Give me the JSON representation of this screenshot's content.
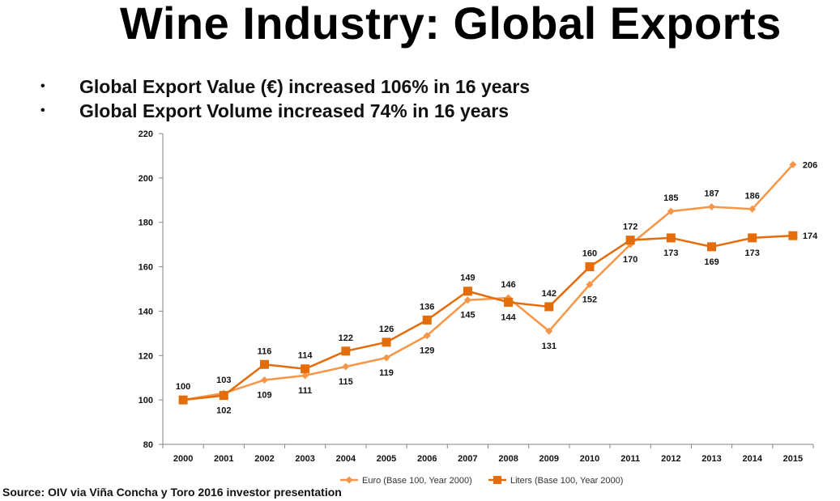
{
  "slide": {
    "title": "Wine Industry: Global Exports",
    "bullets": [
      "Global Export Value (€) increased 106% in 16 years",
      "Global Export Volume increased 74% in 16 years"
    ],
    "source": "Source: OIV via Viña Concha y Toro 2016 investor presentation"
  },
  "chart_data": {
    "type": "line",
    "title": "",
    "xlabel": "",
    "ylabel": "",
    "categories": [
      "2000",
      "2001",
      "2002",
      "2003",
      "2004",
      "2005",
      "2006",
      "2007",
      "2008",
      "2009",
      "2010",
      "2011",
      "2012",
      "2013",
      "2014",
      "2015"
    ],
    "ylim": [
      80,
      220
    ],
    "yticks": [
      80,
      100,
      120,
      140,
      160,
      180,
      200,
      220
    ],
    "grid": false,
    "legend_position": "bottom",
    "series": [
      {
        "name": "Euro (Base 100, Year 2000)",
        "marker": "diamond",
        "color": "#F79646",
        "values": [
          100,
          103,
          109,
          111,
          115,
          119,
          129,
          145,
          146,
          131,
          152,
          170,
          185,
          187,
          186,
          206
        ],
        "label_positions": [
          "none",
          "above",
          "below",
          "below",
          "below",
          "below",
          "below",
          "below",
          "above",
          "below",
          "below",
          "below",
          "above",
          "above",
          "above",
          "right"
        ]
      },
      {
        "name": "Liters (Base 100, Year 2000)",
        "marker": "square",
        "color": "#E46C0A",
        "values": [
          100,
          102,
          116,
          114,
          122,
          126,
          136,
          149,
          144,
          142,
          160,
          172,
          173,
          169,
          173,
          174
        ],
        "label_positions": [
          "above",
          "below",
          "above",
          "above",
          "above",
          "above",
          "above",
          "above",
          "below",
          "above",
          "above",
          "above",
          "below",
          "below",
          "below",
          "right"
        ]
      }
    ]
  }
}
